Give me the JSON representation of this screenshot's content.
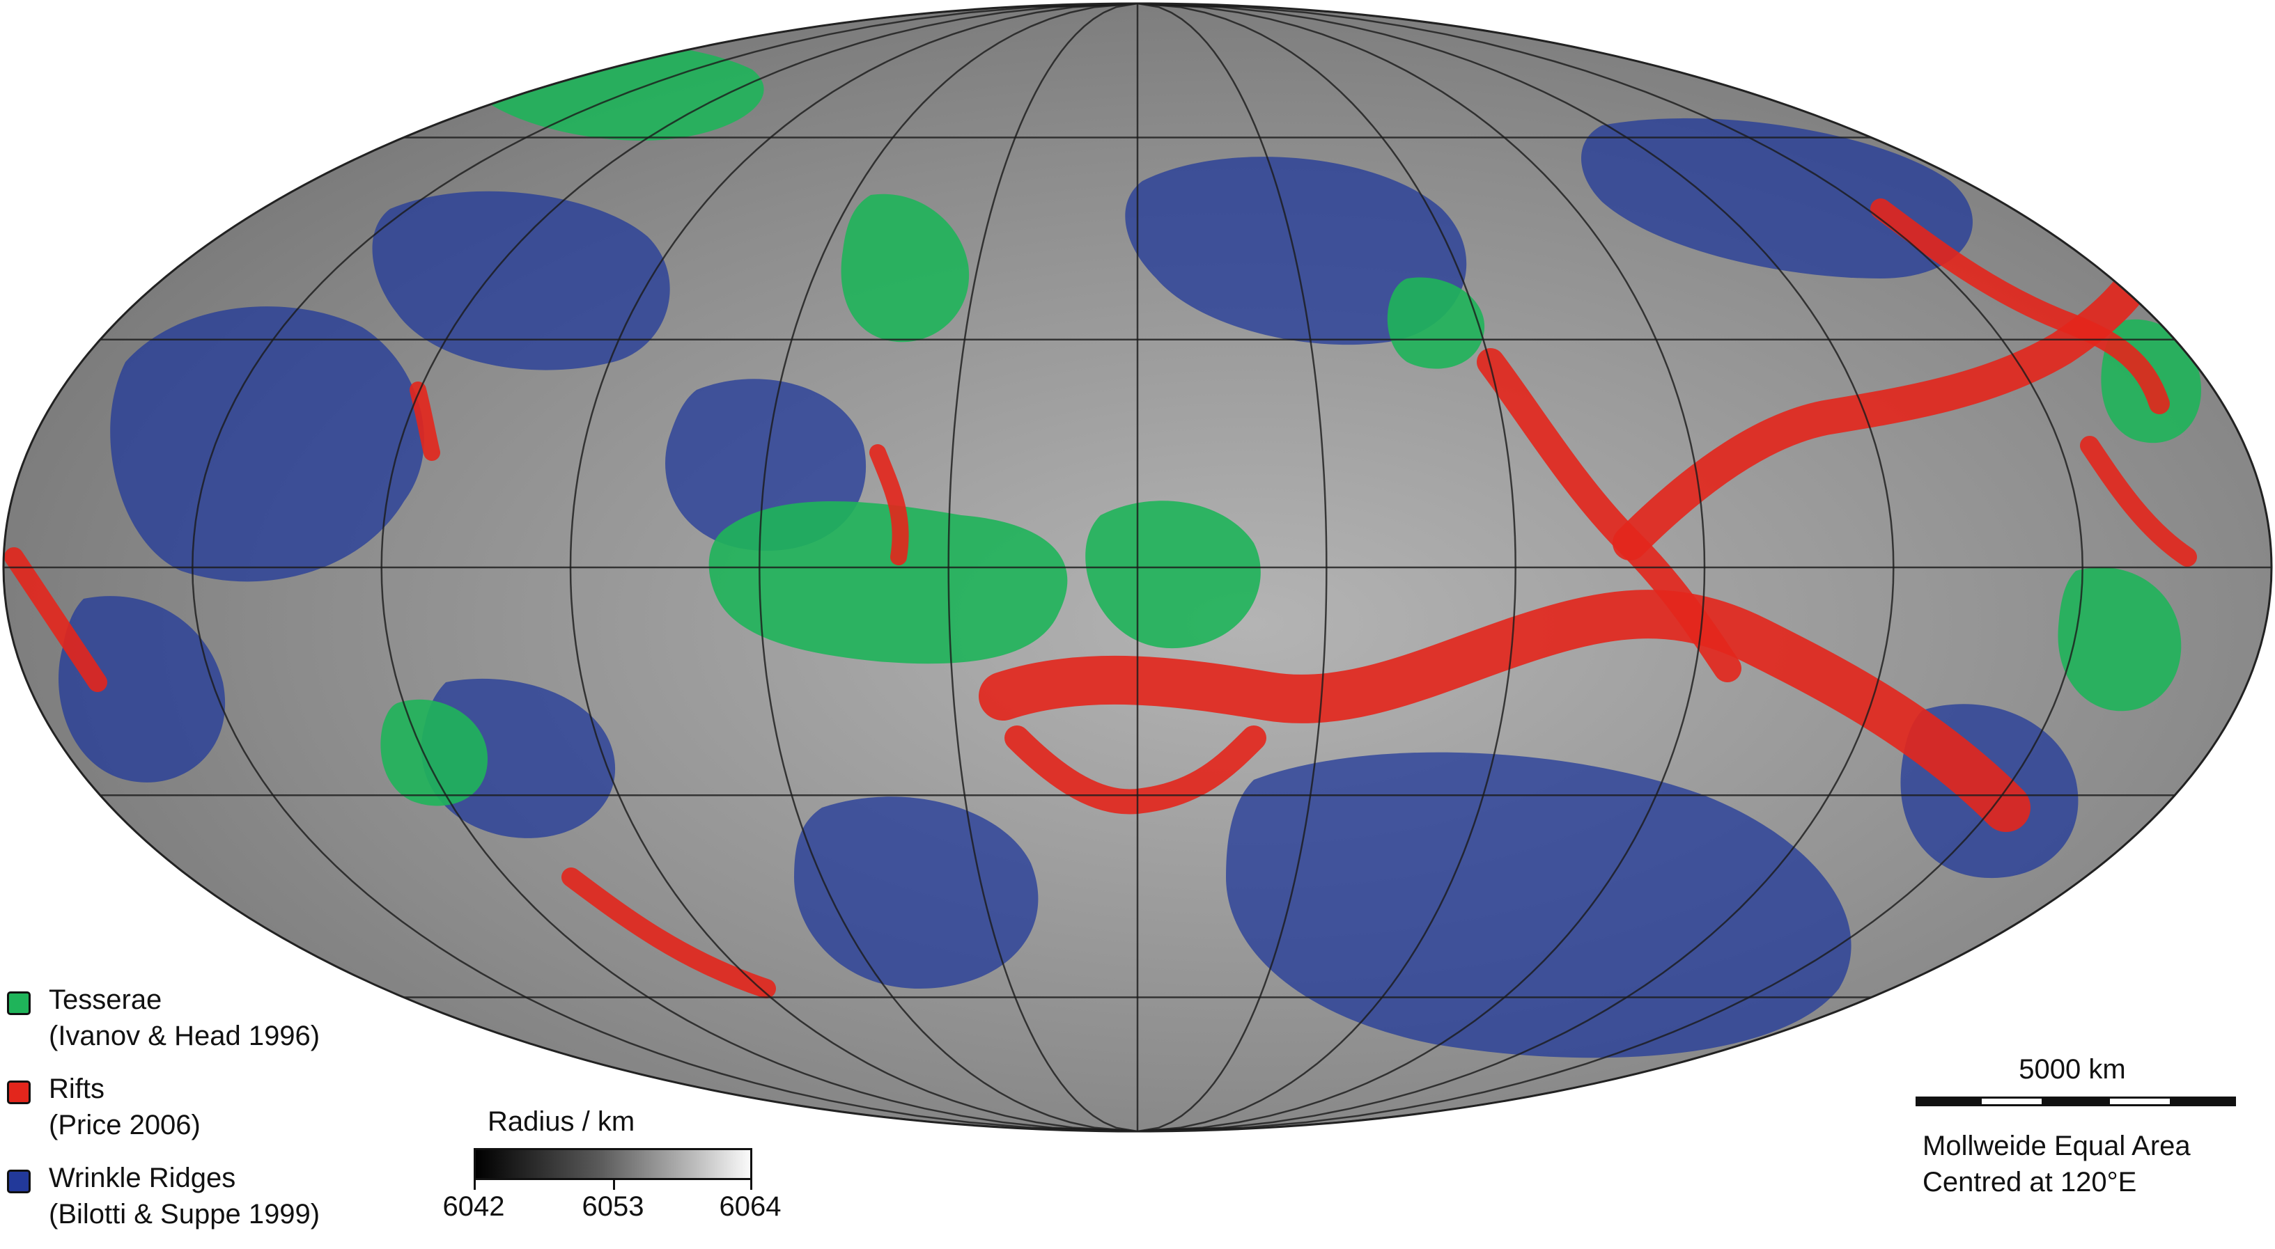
{
  "legend": {
    "items": [
      {
        "title": "Tesserae",
        "citation": "(Ivanov & Head 1996)",
        "color": "#1fb45a"
      },
      {
        "title": "Rifts",
        "citation": "(Price 2006)",
        "color": "#e3261c"
      },
      {
        "title": "Wrinkle Ridges",
        "citation": "(Bilotti & Suppe 1999)",
        "color": "#22399a"
      }
    ]
  },
  "colorbar": {
    "title": "Radius / km",
    "ticks": [
      "6042",
      "6053",
      "6064"
    ],
    "colors": [
      "#000000",
      "#5a5a5a",
      "#bdbdbd",
      "#fafafa"
    ]
  },
  "scale": {
    "label": "5000 km",
    "projection_line1": "Mollweide Equal Area",
    "projection_line2": "Centred at 120°E"
  },
  "map": {
    "base_color": "#8a8a8a",
    "graticule_color": "#1a1a1a",
    "tesserae_color": "#1fb45a",
    "rifts_color": "#e3261c",
    "ridges_color": "#22399a"
  }
}
